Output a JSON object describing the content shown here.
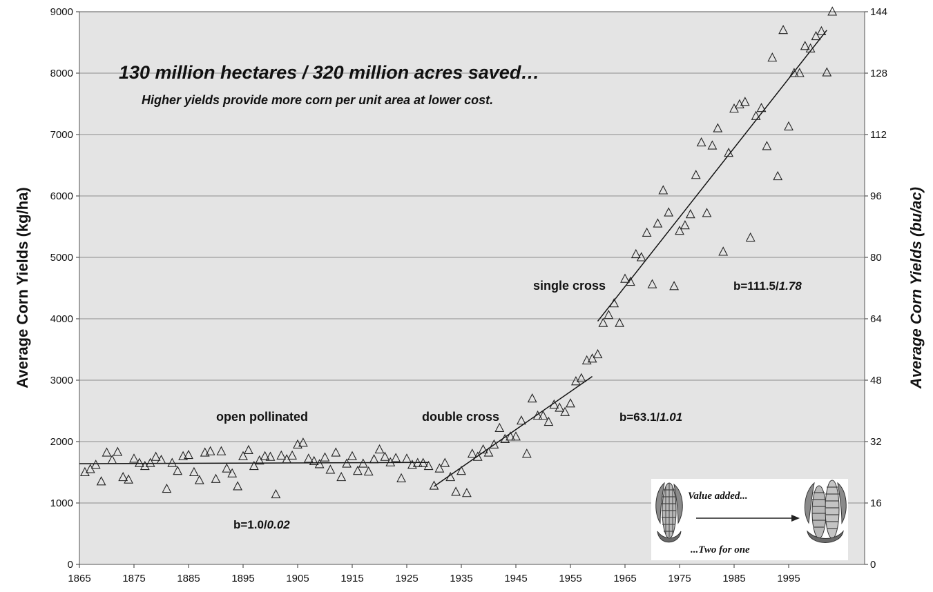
{
  "chart_data": {
    "type": "scatter",
    "title": "130 million hectares / 320 million acres saved…",
    "subtitle": "Higher yields provide more corn per unit area at lower cost.",
    "ylabel": "Average Corn Yields (kg/ha)",
    "y2label": "Average Corn Yields (bu/ac)",
    "xlim": [
      1865,
      2002
    ],
    "ylim": [
      0,
      9000
    ],
    "y2lim": [
      0,
      144
    ],
    "xticks": [
      1865,
      1875,
      1885,
      1895,
      1905,
      1915,
      1925,
      1935,
      1945,
      1955,
      1965,
      1975,
      1985,
      1995
    ],
    "yticks": [
      0,
      1000,
      2000,
      3000,
      4000,
      5000,
      6000,
      7000,
      8000,
      9000
    ],
    "y2ticks": [
      0,
      16,
      32,
      48,
      64,
      80,
      96,
      112,
      128,
      144
    ],
    "grid": "horizontal",
    "marker": "open-triangle",
    "x": [
      1866,
      1867,
      1868,
      1869,
      1870,
      1871,
      1872,
      1873,
      1874,
      1875,
      1876,
      1877,
      1878,
      1879,
      1880,
      1881,
      1882,
      1883,
      1884,
      1885,
      1886,
      1887,
      1888,
      1889,
      1890,
      1891,
      1892,
      1893,
      1894,
      1895,
      1896,
      1897,
      1898,
      1899,
      1900,
      1901,
      1902,
      1903,
      1904,
      1905,
      1906,
      1907,
      1908,
      1909,
      1910,
      1911,
      1912,
      1913,
      1914,
      1915,
      1916,
      1917,
      1918,
      1919,
      1920,
      1921,
      1922,
      1923,
      1924,
      1925,
      1926,
      1927,
      1928,
      1929,
      1930,
      1931,
      1932,
      1933,
      1934,
      1935,
      1936,
      1937,
      1938,
      1939,
      1940,
      1941,
      1942,
      1943,
      1944,
      1945,
      1946,
      1947,
      1948,
      1949,
      1950,
      1951,
      1952,
      1953,
      1954,
      1955,
      1956,
      1957,
      1958,
      1959,
      1960,
      1961,
      1962,
      1963,
      1964,
      1965,
      1966,
      1967,
      1968,
      1969,
      1970,
      1971,
      1972,
      1973,
      1974,
      1975,
      1976,
      1977,
      1978,
      1979,
      1980,
      1981,
      1982,
      1983,
      1984,
      1985,
      1986,
      1987,
      1988,
      1989,
      1990,
      1991,
      1992,
      1993,
      1994,
      1995,
      1996,
      1997,
      1998,
      1999,
      2000,
      2001,
      2002,
      2003
    ],
    "y": [
      1500,
      1550,
      1620,
      1350,
      1820,
      1700,
      1830,
      1420,
      1380,
      1720,
      1650,
      1600,
      1650,
      1750,
      1700,
      1230,
      1650,
      1520,
      1760,
      1780,
      1500,
      1370,
      1820,
      1840,
      1390,
      1840,
      1560,
      1480,
      1270,
      1760,
      1860,
      1600,
      1690,
      1760,
      1750,
      1140,
      1770,
      1710,
      1770,
      1950,
      1980,
      1720,
      1680,
      1630,
      1740,
      1540,
      1820,
      1420,
      1640,
      1760,
      1520,
      1640,
      1510,
      1710,
      1870,
      1750,
      1660,
      1730,
      1400,
      1720,
      1620,
      1650,
      1650,
      1600,
      1280,
      1560,
      1650,
      1420,
      1180,
      1520,
      1160,
      1800,
      1750,
      1870,
      1820,
      1950,
      2220,
      2040,
      2080,
      2080,
      2340,
      1800,
      2700,
      2420,
      2420,
      2320,
      2600,
      2550,
      2480,
      2620,
      2980,
      3030,
      3320,
      3350,
      3420,
      3930,
      4060,
      4250,
      3930,
      4650,
      4600,
      5050,
      5000,
      5400,
      4560,
      5550,
      6090,
      5730,
      4530,
      5430,
      5520,
      5700,
      6340,
      6870,
      5720,
      6820,
      7100,
      5090,
      6700,
      7420,
      7490,
      7530,
      5320,
      7300,
      7430,
      6810,
      8250,
      6320,
      8700,
      7130,
      8000,
      8000,
      8440,
      8400,
      8600,
      8680,
      8010,
      9000
    ],
    "trendlines": [
      {
        "x": [
          1865,
          1929
        ],
        "y": [
          1640,
          1660
        ]
      },
      {
        "x": [
          1930,
          1959
        ],
        "y": [
          1270,
          3060
        ]
      },
      {
        "x": [
          1960,
          2002
        ],
        "y": [
          3960,
          8700
        ]
      }
    ],
    "annotations": {
      "open_pollinated": "open pollinated",
      "double_cross": "double cross",
      "single_cross": "single cross",
      "slope_open": [
        "b=1.0/",
        "0.02"
      ],
      "slope_double": [
        "b=63.1/",
        "1.01"
      ],
      "slope_single": [
        "b=111.5/",
        "1.78"
      ],
      "value_added": "Value added...",
      "two_for_one": "...Two for one"
    }
  }
}
